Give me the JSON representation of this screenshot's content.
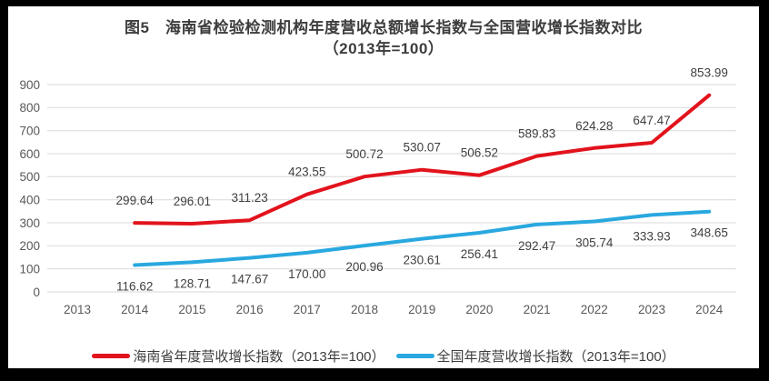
{
  "title": {
    "line1": "图5　海南省检验检测机构年度营收总额增长指数与全国营收增长指数对比",
    "line2": "（2013年=100）"
  },
  "chart_data": {
    "type": "line",
    "categories": [
      "2013",
      "2014",
      "2015",
      "2016",
      "2017",
      "2018",
      "2019",
      "2020",
      "2021",
      "2022",
      "2023",
      "2024"
    ],
    "series": [
      {
        "name": "海南省年度营收增长指数（2013年=100）",
        "color": "#e2131c",
        "values": [
          null,
          299.64,
          296.01,
          311.23,
          423.55,
          500.72,
          530.07,
          506.52,
          589.83,
          624.28,
          647.47,
          853.99
        ]
      },
      {
        "name": "全国年度营收增长指数（2013年=100）",
        "color": "#29a8df",
        "values": [
          null,
          116.62,
          128.71,
          147.67,
          170.0,
          200.96,
          230.61,
          256.41,
          292.47,
          305.74,
          333.93,
          348.65
        ]
      }
    ],
    "ylim": [
      0,
      900
    ],
    "yticks": [
      0,
      100,
      200,
      300,
      400,
      500,
      600,
      700,
      800,
      900
    ],
    "grid": true,
    "legend_position": "bottom",
    "data_labels": true,
    "data_label_decimals": 2,
    "xlabel": "",
    "ylabel": ""
  },
  "colors": {
    "background": "#000000",
    "panel": "#ffffff",
    "grid": "#d9d9d9",
    "axis_text": "#595959",
    "data_label_text": "#404040",
    "title_text": "#3d3d3d"
  }
}
